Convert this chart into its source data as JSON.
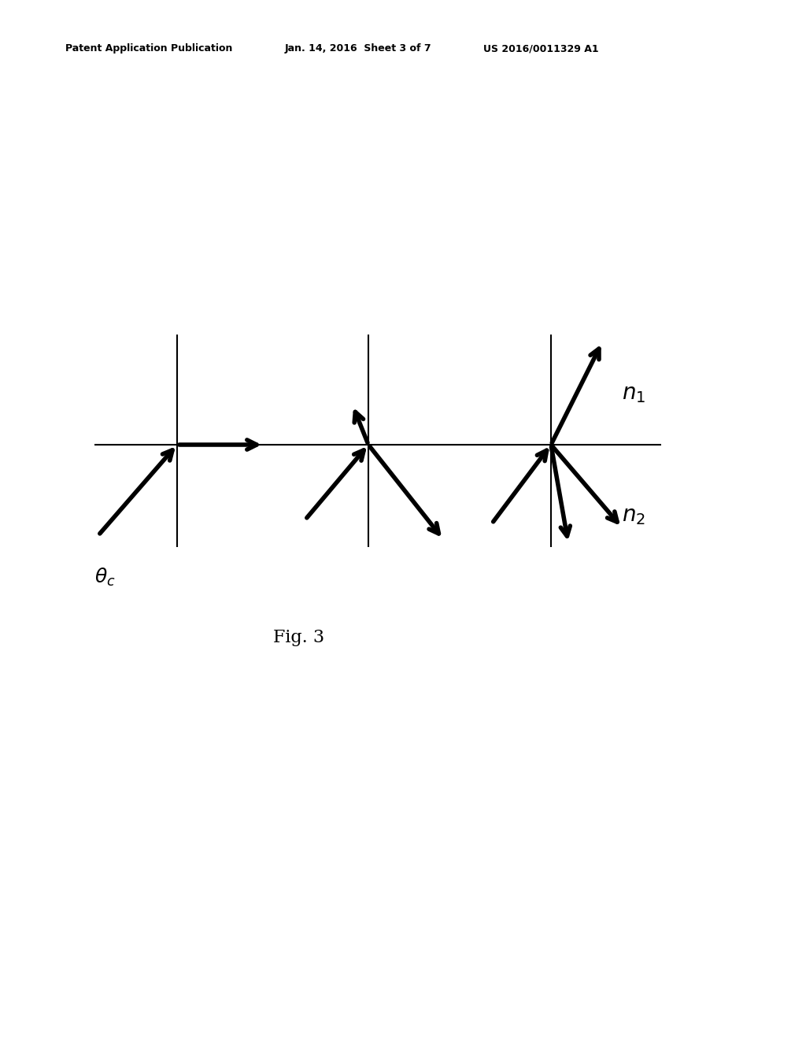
{
  "background_color": "#ffffff",
  "fig_width": 10.24,
  "fig_height": 13.2,
  "header_left": "Patent Application Publication",
  "header_center": "Jan. 14, 2016  Sheet 3 of 7",
  "header_right": "US 2016/0011329 A1",
  "figure_label": "Fig. 3",
  "arrow_color": "#000000",
  "line_color": "#000000",
  "line_lw": 1.5,
  "arrow_lw": 4.0,
  "arrow_mutation_scale": 22
}
